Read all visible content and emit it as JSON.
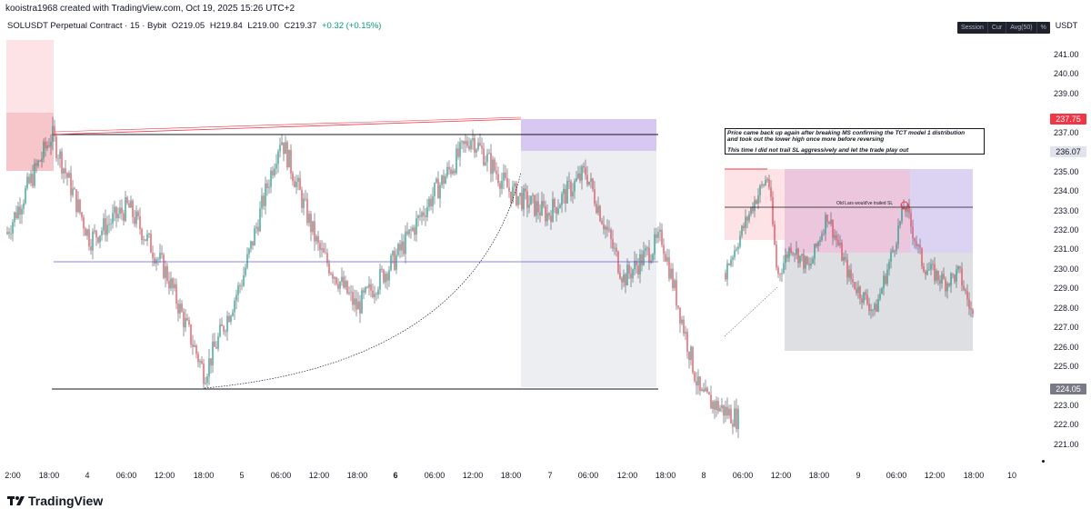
{
  "header": {
    "credit": "kooistra1968 created with TradingView.com, Oct 19, 2025 15:26 UTC+2"
  },
  "legend": {
    "symbol": "SOLUSDT Perpetual Contract · 15 · Bybit",
    "open": "O219.05",
    "high": "H219.84",
    "low": "L219.00",
    "close": "C219.37",
    "change": "+0.32 (+0.15%)"
  },
  "toolbar": {
    "pills": [
      "Session",
      "Cur",
      "Avg(50)",
      "%"
    ],
    "currency": "USDT"
  },
  "price_axis": {
    "ticks": [
      "241.00",
      "240.00",
      "239.00",
      "237.00",
      "235.00",
      "234.00",
      "233.00",
      "232.00",
      "231.00",
      "230.00",
      "229.00",
      "228.00",
      "227.00",
      "226.00",
      "225.00",
      "223.00",
      "222.00",
      "221.00"
    ],
    "badges": [
      {
        "label": "237.75",
        "color": "#f23645"
      },
      {
        "label": "236.07",
        "color": "#e0e3eb"
      },
      {
        "label": "224.05",
        "color": "#787b86"
      }
    ]
  },
  "time_axis": {
    "ticks": [
      "2:00",
      "18:00",
      "4",
      "06:00",
      "12:00",
      "18:00",
      "5",
      "06:00",
      "12:00",
      "18:00",
      "6",
      "06:00",
      "12:00",
      "18:00",
      "7",
      "06:00",
      "12:00",
      "18:00",
      "8",
      "06:00",
      "12:00",
      "18:00",
      "9",
      "06:00",
      "12:00",
      "18:00",
      "10"
    ]
  },
  "annotation": {
    "line1": "Price came back up again after breaking MS confirming the TCT model 1 distribution",
    "line2": "and took out the lower high once more before reversing",
    "line3": "This time I did not trail SL aggressively and let the trade play out",
    "small_note": "Old Lars would've trailed SL"
  },
  "branding": {
    "logo_text": "TradingView"
  },
  "colors": {
    "up": "#089981",
    "down": "#f23645",
    "stop_zone": "#f7c6cb",
    "target_zone": "#dedfe3",
    "entry_zone": "#d6c8f0"
  },
  "chart_data": {
    "type": "line",
    "symbol": "SOLUSDT",
    "timeframe": "15",
    "ylim": [
      220.5,
      241.5
    ],
    "x": [
      "18:00",
      "4",
      "06:00",
      "12:00",
      "18:00",
      "5",
      "06:00",
      "12:00",
      "18:00",
      "6",
      "06:00",
      "12:00",
      "18:00",
      "7",
      "06:00",
      "12:00",
      "18:00",
      "8",
      "06:00"
    ],
    "series": [
      {
        "values": [
          236.9,
          231.5,
          233.2,
          229.8,
          224.6,
          229.5,
          236.8,
          231.0,
          228.0,
          230.5,
          233.8,
          236.8,
          234.0,
          232.8,
          235.0,
          229.5,
          231.6,
          223.5,
          222.3
        ]
      }
    ],
    "levels": [
      237.0,
      224.05,
      230.6
    ]
  }
}
